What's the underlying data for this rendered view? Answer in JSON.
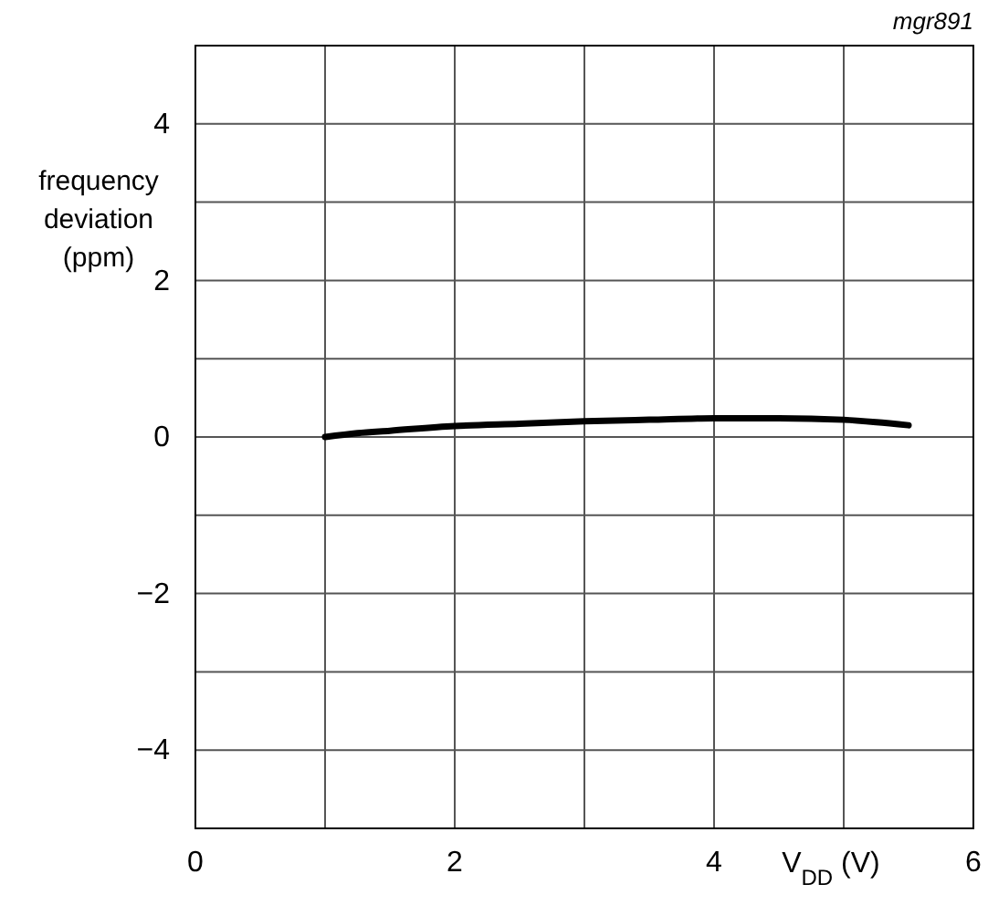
{
  "chart_data": {
    "type": "line",
    "xlabel": "V$_{DD}$ (V)",
    "ylabel": "frequency deviation (ppm)",
    "annotations": [
      "mgr891"
    ],
    "xlim": [
      0,
      6
    ],
    "ylim": [
      -5,
      5
    ],
    "xticks": [
      0,
      {
        "value": 1,
        "label": null
      },
      2,
      {
        "value": 3,
        "label": null
      },
      4,
      {
        "value": 5,
        "label": null
      },
      6
    ],
    "yticks": [
      {
        "value": -5,
        "label": null
      },
      {
        "value": -4,
        "label": "−4"
      },
      {
        "value": -3,
        "label": null
      },
      {
        "value": -2,
        "label": "−2"
      },
      {
        "value": -1,
        "label": null
      },
      0,
      {
        "value": 1,
        "label": null
      },
      2,
      {
        "value": 3,
        "label": null
      },
      4,
      {
        "value": 5,
        "label": null
      }
    ],
    "grid": true,
    "line_style": "solid",
    "series": [
      {
        "color": "#000000",
        "x": [
          1.0,
          1.25,
          1.5,
          2.0,
          2.5,
          3.0,
          3.5,
          4.0,
          4.5,
          5.0,
          5.25,
          5.5
        ],
        "values": [
          0.0,
          0.05,
          0.08,
          0.14,
          0.17,
          0.2,
          0.22,
          0.24,
          0.24,
          0.22,
          0.19,
          0.15
        ]
      }
    ]
  }
}
